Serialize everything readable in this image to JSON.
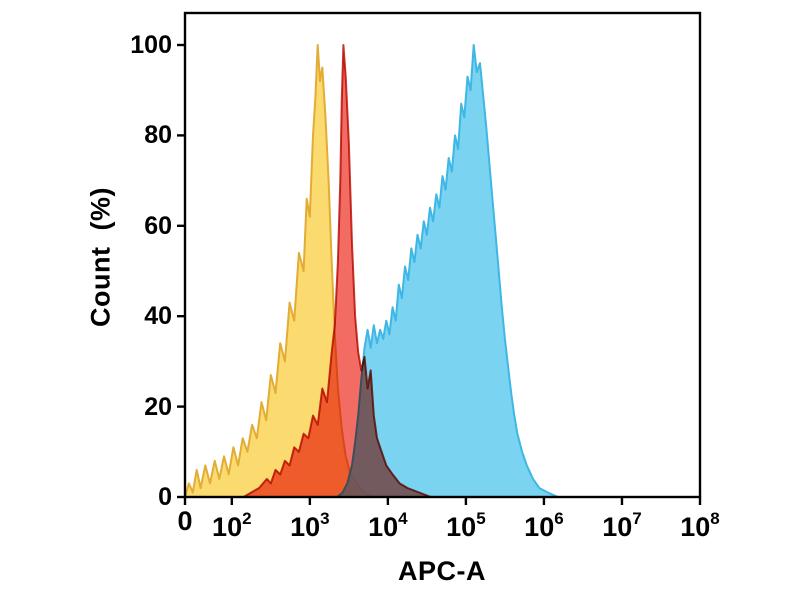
{
  "figure": {
    "background": "#ffffff",
    "border_color": "#000000"
  },
  "chart_data": {
    "type": "area",
    "subtype": "flow-cytometry-histogram-overlay",
    "title": "",
    "xlabel": "APC-A",
    "ylabel": "Count  (%)",
    "grid": "off",
    "legend": null,
    "x_axis": {
      "scale": "log10",
      "min_decade": 1.4,
      "max_decade": 8.0,
      "ticks": [
        {
          "text": "0",
          "sup": "",
          "decade": 1.4
        },
        {
          "text": "10",
          "sup": "2",
          "decade": 2
        },
        {
          "text": "10",
          "sup": "3",
          "decade": 3
        },
        {
          "text": "10",
          "sup": "4",
          "decade": 4
        },
        {
          "text": "10",
          "sup": "5",
          "decade": 5
        },
        {
          "text": "10",
          "sup": "6",
          "decade": 6
        },
        {
          "text": "10",
          "sup": "7",
          "decade": 7
        },
        {
          "text": "10",
          "sup": "8",
          "decade": 8
        }
      ]
    },
    "y_axis": {
      "min": 0,
      "max": 100,
      "ticks": [
        0,
        20,
        40,
        60,
        80,
        100
      ]
    },
    "series": [
      {
        "name": "yellow-population",
        "peak_x_decade": 3.1,
        "peak_y_percent": 100,
        "fill": "#fbda6f",
        "fill_opacity": 1,
        "stroke": "#e2ac35",
        "points": [
          [
            1.4,
            0
          ],
          [
            1.45,
            3
          ],
          [
            1.5,
            1
          ],
          [
            1.55,
            6
          ],
          [
            1.6,
            2
          ],
          [
            1.66,
            7
          ],
          [
            1.72,
            3
          ],
          [
            1.78,
            8
          ],
          [
            1.84,
            4
          ],
          [
            1.9,
            9
          ],
          [
            1.96,
            5
          ],
          [
            2.02,
            11
          ],
          [
            2.08,
            7
          ],
          [
            2.14,
            13
          ],
          [
            2.2,
            10
          ],
          [
            2.26,
            16
          ],
          [
            2.32,
            13
          ],
          [
            2.38,
            21
          ],
          [
            2.44,
            17
          ],
          [
            2.5,
            27
          ],
          [
            2.56,
            23
          ],
          [
            2.62,
            34
          ],
          [
            2.68,
            30
          ],
          [
            2.74,
            43
          ],
          [
            2.8,
            39
          ],
          [
            2.86,
            54
          ],
          [
            2.92,
            50
          ],
          [
            2.96,
            66
          ],
          [
            3.0,
            62
          ],
          [
            3.04,
            80
          ],
          [
            3.07,
            88
          ],
          [
            3.1,
            100
          ],
          [
            3.13,
            92
          ],
          [
            3.16,
            95
          ],
          [
            3.2,
            84
          ],
          [
            3.24,
            70
          ],
          [
            3.28,
            52
          ],
          [
            3.32,
            36
          ],
          [
            3.36,
            24
          ],
          [
            3.41,
            15
          ],
          [
            3.46,
            9
          ],
          [
            3.52,
            5
          ],
          [
            3.6,
            3
          ],
          [
            3.7,
            1
          ],
          [
            3.82,
            0
          ]
        ]
      },
      {
        "name": "blue-population",
        "peak_x_decade": 5.1,
        "peak_y_percent": 100,
        "fill": "#62cbee",
        "fill_opacity": 0.85,
        "stroke": "#3fb7e5",
        "points": [
          [
            3.35,
            0
          ],
          [
            3.42,
            1
          ],
          [
            3.48,
            3
          ],
          [
            3.54,
            7
          ],
          [
            3.58,
            12
          ],
          [
            3.62,
            18
          ],
          [
            3.66,
            26
          ],
          [
            3.7,
            33
          ],
          [
            3.74,
            37
          ],
          [
            3.78,
            33
          ],
          [
            3.82,
            38
          ],
          [
            3.86,
            34
          ],
          [
            3.9,
            37
          ],
          [
            3.94,
            35
          ],
          [
            3.98,
            39
          ],
          [
            4.02,
            36
          ],
          [
            4.06,
            42
          ],
          [
            4.1,
            39
          ],
          [
            4.14,
            47
          ],
          [
            4.18,
            44
          ],
          [
            4.22,
            51
          ],
          [
            4.26,
            48
          ],
          [
            4.3,
            55
          ],
          [
            4.34,
            52
          ],
          [
            4.38,
            58
          ],
          [
            4.42,
            55
          ],
          [
            4.46,
            61
          ],
          [
            4.5,
            58
          ],
          [
            4.54,
            64
          ],
          [
            4.58,
            61
          ],
          [
            4.62,
            67
          ],
          [
            4.66,
            64
          ],
          [
            4.7,
            71
          ],
          [
            4.74,
            68
          ],
          [
            4.78,
            75
          ],
          [
            4.82,
            72
          ],
          [
            4.86,
            80
          ],
          [
            4.9,
            77
          ],
          [
            4.94,
            87
          ],
          [
            4.98,
            84
          ],
          [
            5.02,
            93
          ],
          [
            5.06,
            90
          ],
          [
            5.1,
            100
          ],
          [
            5.14,
            94
          ],
          [
            5.18,
            96
          ],
          [
            5.22,
            89
          ],
          [
            5.26,
            82
          ],
          [
            5.3,
            74
          ],
          [
            5.34,
            66
          ],
          [
            5.38,
            58
          ],
          [
            5.42,
            50
          ],
          [
            5.46,
            42
          ],
          [
            5.5,
            35
          ],
          [
            5.54,
            29
          ],
          [
            5.58,
            23
          ],
          [
            5.62,
            18
          ],
          [
            5.66,
            14
          ],
          [
            5.72,
            10
          ],
          [
            5.78,
            7
          ],
          [
            5.86,
            4
          ],
          [
            5.94,
            2
          ],
          [
            6.05,
            1
          ],
          [
            6.18,
            0
          ]
        ]
      },
      {
        "name": "red-population",
        "peak_x_decade": 3.43,
        "peak_y_percent": 100,
        "fill": "#ee3b30",
        "fill_opacity": 0.75,
        "stroke": "#c9392e",
        "blend": "multiply",
        "points": [
          [
            2.15,
            0
          ],
          [
            2.25,
            1
          ],
          [
            2.35,
            2
          ],
          [
            2.45,
            4
          ],
          [
            2.5,
            3
          ],
          [
            2.56,
            6
          ],
          [
            2.62,
            5
          ],
          [
            2.68,
            8
          ],
          [
            2.74,
            7
          ],
          [
            2.8,
            11
          ],
          [
            2.86,
            10
          ],
          [
            2.92,
            14
          ],
          [
            2.98,
            13
          ],
          [
            3.04,
            18
          ],
          [
            3.1,
            16
          ],
          [
            3.16,
            24
          ],
          [
            3.22,
            21
          ],
          [
            3.28,
            32
          ],
          [
            3.32,
            38
          ],
          [
            3.36,
            52
          ],
          [
            3.39,
            70
          ],
          [
            3.41,
            88
          ],
          [
            3.43,
            100
          ],
          [
            3.46,
            93
          ],
          [
            3.5,
            78
          ],
          [
            3.54,
            56
          ],
          [
            3.58,
            40
          ],
          [
            3.62,
            32
          ],
          [
            3.66,
            28
          ],
          [
            3.7,
            31
          ],
          [
            3.74,
            24
          ],
          [
            3.78,
            28
          ],
          [
            3.82,
            18
          ],
          [
            3.86,
            13
          ],
          [
            3.92,
            10
          ],
          [
            3.98,
            7
          ],
          [
            4.06,
            5
          ],
          [
            4.15,
            3
          ],
          [
            4.25,
            2
          ],
          [
            4.4,
            1
          ],
          [
            4.55,
            0
          ]
        ]
      }
    ]
  }
}
